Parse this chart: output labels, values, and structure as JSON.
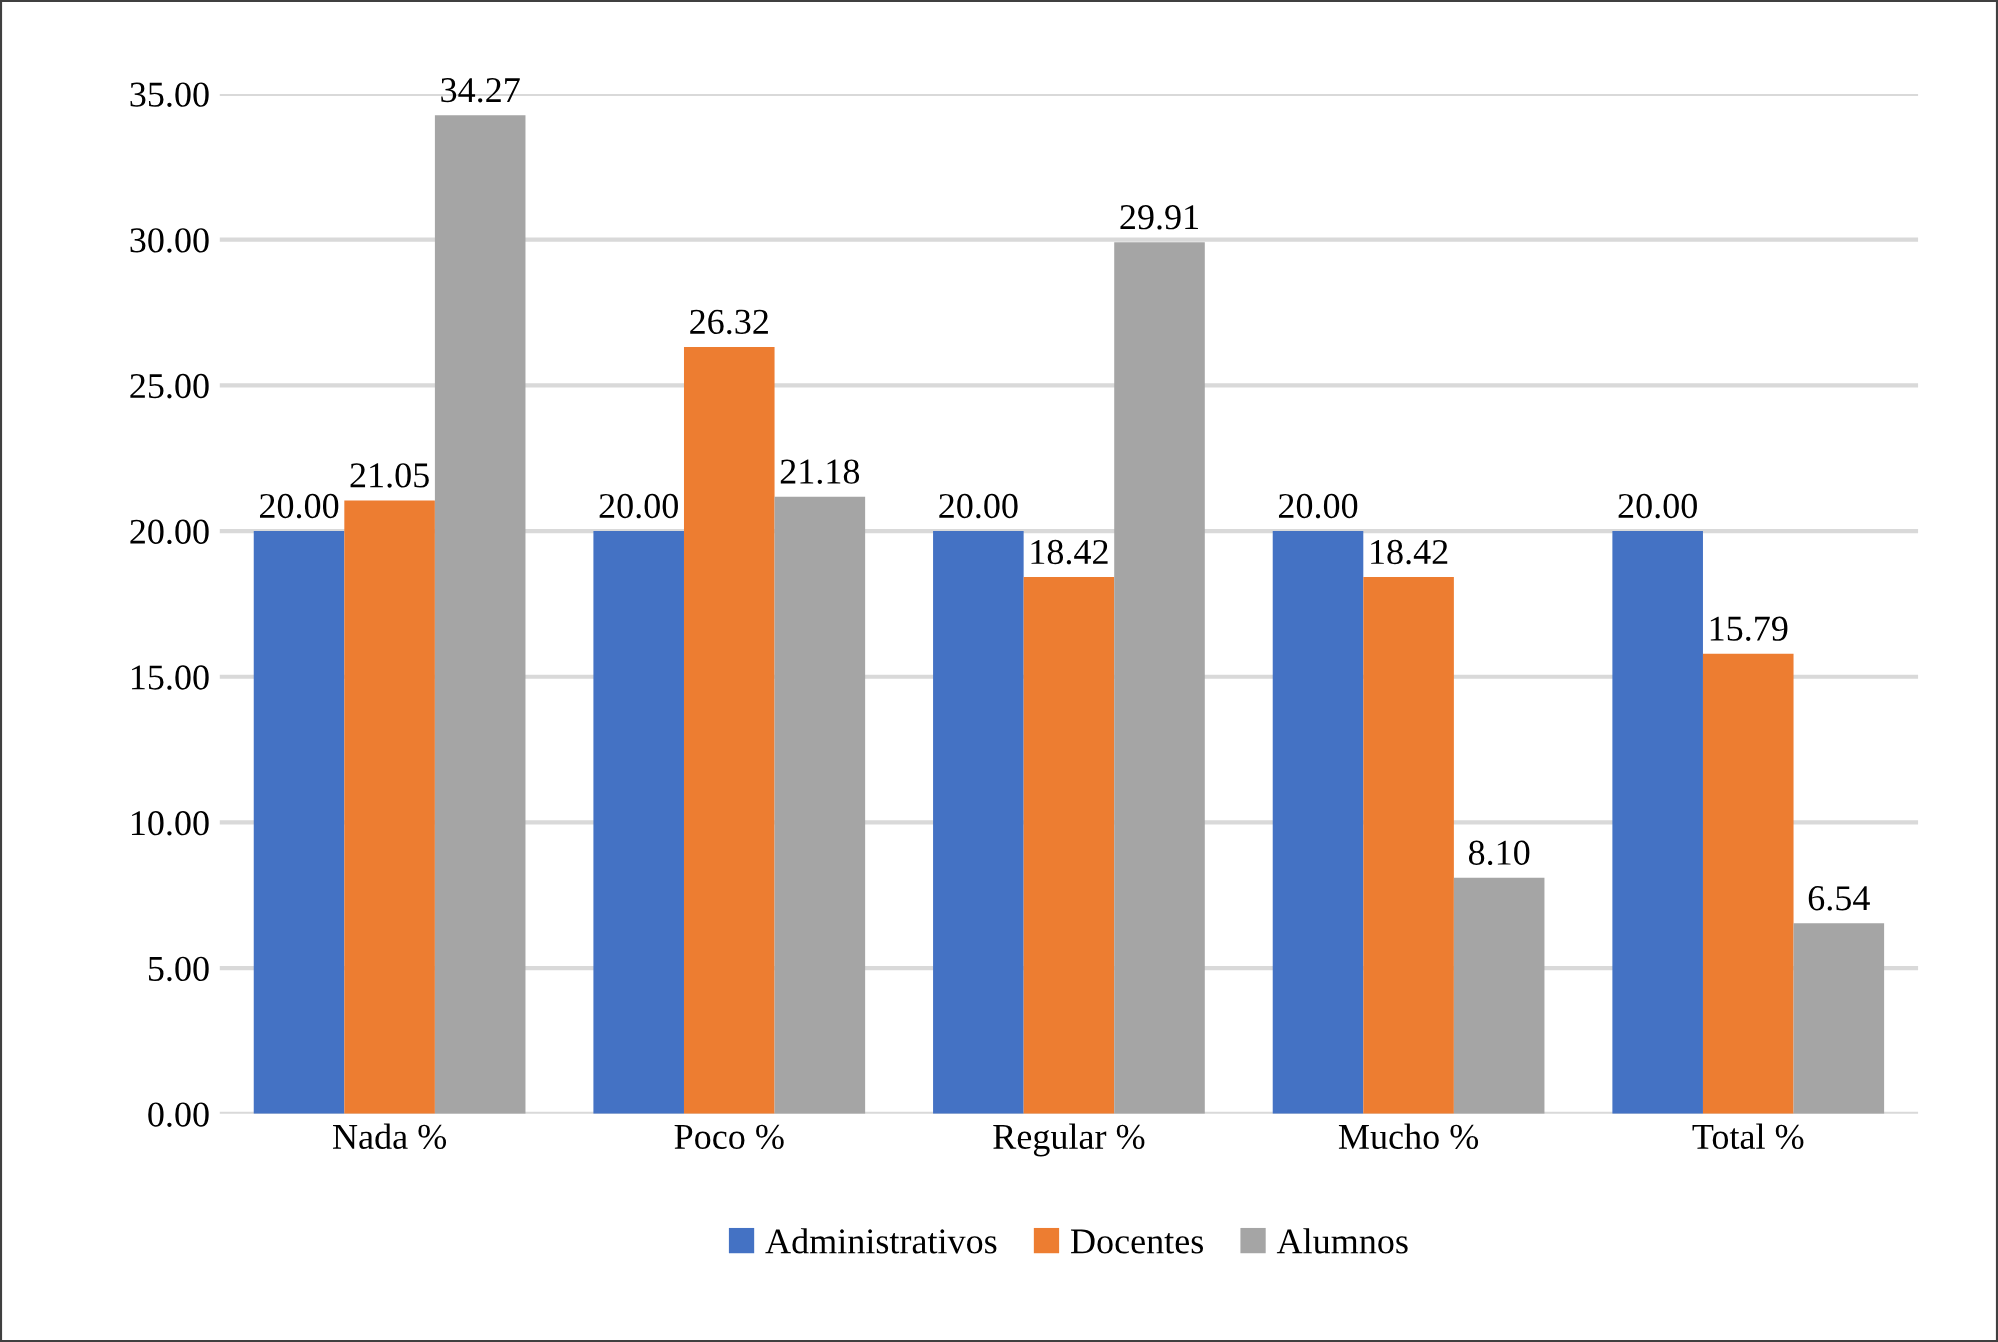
{
  "chart_data": {
    "type": "bar",
    "categories": [
      "Nada %",
      "Poco %",
      "Regular %",
      "Mucho %",
      "Total %"
    ],
    "series": [
      {
        "name": "Administrativos",
        "color": "#4472c4",
        "values": [
          20.0,
          20.0,
          20.0,
          20.0,
          20.0
        ],
        "value_labels": [
          "20.00",
          "20.00",
          "20.00",
          "20.00",
          "20.00"
        ]
      },
      {
        "name": "Docentes",
        "color": "#ed7d31",
        "values": [
          21.05,
          26.32,
          18.42,
          18.42,
          15.79
        ],
        "value_labels": [
          "21.05",
          "26.32",
          "18.42",
          "18.42",
          "15.79"
        ]
      },
      {
        "name": "Alumnos",
        "color": "#a5a5a5",
        "values": [
          34.27,
          21.18,
          29.91,
          8.1,
          6.54
        ],
        "value_labels": [
          "34.27",
          "21.18",
          "29.91",
          "8.10",
          "6.54"
        ]
      }
    ],
    "ylim": [
      0,
      35
    ],
    "yticks": [
      {
        "value": 0,
        "label": "0.00"
      },
      {
        "value": 5,
        "label": "5.00"
      },
      {
        "value": 10,
        "label": "10.00"
      },
      {
        "value": 15,
        "label": "15.00"
      },
      {
        "value": 20,
        "label": "20.00"
      },
      {
        "value": 25,
        "label": "25.00"
      },
      {
        "value": 30,
        "label": "30.00"
      },
      {
        "value": 35,
        "label": "35.00"
      }
    ],
    "grid": "y",
    "legend": "bottom"
  }
}
